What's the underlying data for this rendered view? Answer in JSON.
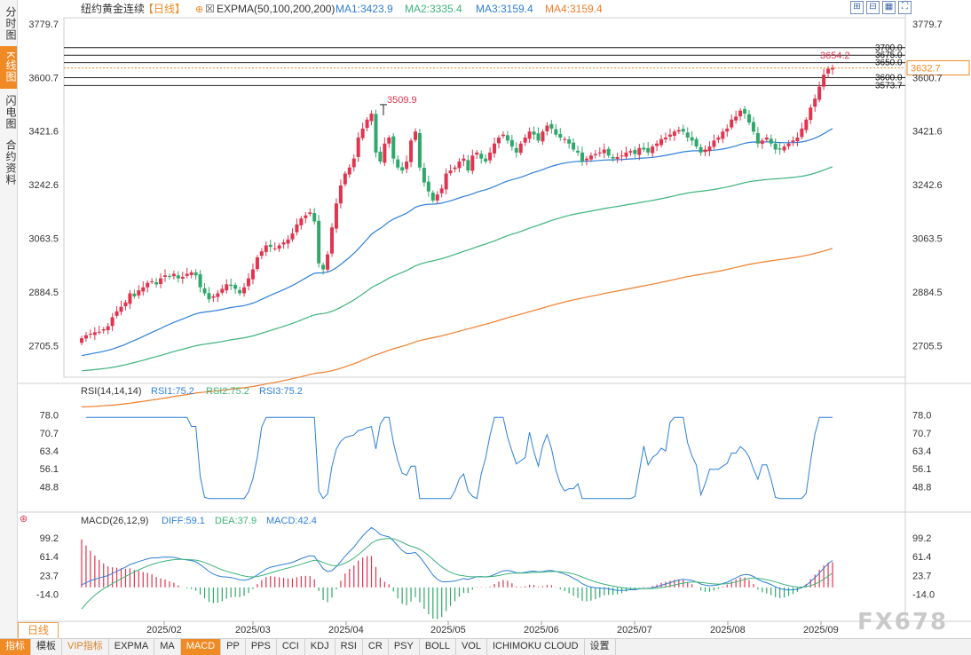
{
  "left_tabs": [
    {
      "label": "分时图",
      "active": false
    },
    {
      "label": "K线图",
      "active": true
    },
    {
      "label": "闪电图",
      "active": false
    },
    {
      "label": "合约资料",
      "active": false
    }
  ],
  "header": {
    "symbol": "纽约黄金连续",
    "period": "【日线】",
    "indicator": "EXPMA(50,100,200,200)",
    "ma1": "MA1:3423.9",
    "ma2": "MA2:3335.4",
    "ma3": "MA3:3159.4",
    "ma4": "MA4:3159.4"
  },
  "colors": {
    "up": "#e0344f",
    "down": "#2fa86a",
    "ma1": "#2d7fd8",
    "ma2": "#3cb37a",
    "ma3": "#f07d2a",
    "accent": "#f08a24",
    "grid": "#e6e6e6"
  },
  "chart_data": [
    {
      "type": "candlestick",
      "series": [
        {
          "name": "MA1",
          "value": 3423.9
        },
        {
          "name": "MA2",
          "value": 3335.4
        },
        {
          "name": "MA3",
          "value": 3159.4
        },
        {
          "name": "MA4",
          "value": 3159.4
        }
      ],
      "yticks": [
        "3779.7",
        "3600.7",
        "3421.6",
        "3242.6",
        "3063.5",
        "2884.5",
        "2705.5"
      ],
      "ylim": [
        2600,
        3800
      ],
      "xticks": [
        "2025/02",
        "2025/03",
        "2025/04",
        "2025/05",
        "2025/06",
        "2025/07",
        "2025/08",
        "2025/09"
      ],
      "annotations": [
        {
          "label": "3509.9",
          "value": 3509.9,
          "note": "peak"
        },
        {
          "label": "3654.2",
          "value": 3654.2,
          "note": "latest high"
        }
      ],
      "levels": [
        {
          "label": "3700.0",
          "value": 3700.0
        },
        {
          "label": "3675.0",
          "value": 3675.0
        },
        {
          "label": "3650.0",
          "value": 3650.0
        },
        {
          "label": "3600.0",
          "value": 3600.0
        },
        {
          "label": "3573.7",
          "value": 3573.7
        }
      ],
      "last_price": "3632.7",
      "close_approx": [
        2730,
        2740,
        2745,
        2750,
        2752,
        2760,
        2770,
        2800,
        2820,
        2835,
        2850,
        2880,
        2870,
        2890,
        2900,
        2915,
        2920,
        2910,
        2930,
        2940,
        2935,
        2945,
        2930,
        2935,
        2945,
        2950,
        2940,
        2900,
        2880,
        2860,
        2870,
        2880,
        2895,
        2910,
        2905,
        2895,
        2880,
        2900,
        2930,
        2960,
        3000,
        3020,
        3040,
        3035,
        3030,
        3040,
        3050,
        3060,
        3080,
        3110,
        3130,
        3140,
        3150,
        3120,
        2980,
        2960,
        3010,
        3100,
        3180,
        3240,
        3280,
        3300,
        3330,
        3400,
        3430,
        3460,
        3480,
        3350,
        3320,
        3380,
        3400,
        3330,
        3300,
        3290,
        3320,
        3390,
        3420,
        3300,
        3250,
        3220,
        3190,
        3210,
        3230,
        3280,
        3290,
        3300,
        3320,
        3330,
        3290,
        3340,
        3350,
        3330,
        3320,
        3350,
        3380,
        3400,
        3410,
        3390,
        3370,
        3350,
        3380,
        3400,
        3420,
        3410,
        3390,
        3420,
        3440,
        3430,
        3410,
        3400,
        3395,
        3380,
        3360,
        3350,
        3320,
        3330,
        3340,
        3345,
        3350,
        3360,
        3340,
        3330,
        3335,
        3340,
        3350,
        3355,
        3345,
        3365,
        3360,
        3350,
        3370,
        3380,
        3395,
        3400,
        3410,
        3420,
        3425,
        3420,
        3400,
        3390,
        3370,
        3350,
        3360,
        3370,
        3390,
        3400,
        3420,
        3430,
        3460,
        3470,
        3490,
        3480,
        3450,
        3420,
        3380,
        3390,
        3400,
        3380,
        3360,
        3360,
        3370,
        3380,
        3390,
        3400,
        3430,
        3460,
        3500,
        3530,
        3570,
        3610,
        3630,
        3632.7
      ]
    },
    {
      "type": "line",
      "title": "RSI(14,14,14)",
      "series": [
        {
          "name": "RSI1:75.2",
          "value": 75.2
        },
        {
          "name": "RSI2:75.2",
          "value": 75.2
        },
        {
          "name": "RSI3:75.2",
          "value": 75.2
        }
      ],
      "yticks": [
        "78.0",
        "70.7",
        "63.4",
        "56.1",
        "48.8"
      ],
      "ylim": [
        41,
        80
      ]
    },
    {
      "type": "bar",
      "title": "MACD(26,12,9)",
      "series": [
        {
          "name": "DIFF:59.1",
          "value": 59.1
        },
        {
          "name": "DEA:37.9",
          "value": 37.9
        },
        {
          "name": "MACD:42.4",
          "value": 42.4
        }
      ],
      "yticks": [
        "99.2",
        "61.4",
        "23.7",
        "-14.0"
      ],
      "ylim": [
        -50,
        115
      ]
    }
  ],
  "bottom_period": "日线",
  "bottom_tabs": [
    {
      "label": "指标",
      "active": true,
      "vip": false
    },
    {
      "label": "模板",
      "active": false,
      "vip": false
    },
    {
      "label": "VIP指标",
      "active": false,
      "vip": true
    },
    {
      "label": "EXPMA",
      "active": false,
      "vip": false
    },
    {
      "label": "MA",
      "active": false,
      "vip": false
    },
    {
      "label": "MACD",
      "active": true,
      "vip": false
    },
    {
      "label": "PP",
      "active": false,
      "vip": false
    },
    {
      "label": "PPS",
      "active": false,
      "vip": false
    },
    {
      "label": "CCI",
      "active": false,
      "vip": false
    },
    {
      "label": "KDJ",
      "active": false,
      "vip": false
    },
    {
      "label": "RSI",
      "active": false,
      "vip": false
    },
    {
      "label": "CR",
      "active": false,
      "vip": false
    },
    {
      "label": "PSY",
      "active": false,
      "vip": false
    },
    {
      "label": "BOLL",
      "active": false,
      "vip": false
    },
    {
      "label": "VOL",
      "active": false,
      "vip": false
    },
    {
      "label": "ICHIMOKU CLOUD",
      "active": false,
      "vip": false
    },
    {
      "label": "设置",
      "active": false,
      "vip": false
    }
  ],
  "watermark": "FX678",
  "tool_icons": [
    "expand-icon",
    "compress-icon",
    "grid-icon",
    "fullscreen-icon"
  ]
}
